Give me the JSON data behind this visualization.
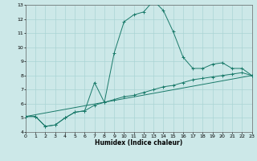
{
  "xlabel": "Humidex (Indice chaleur)",
  "bg_color": "#cce8e8",
  "line_color": "#1a7a6a",
  "grid_color": "#aad4d4",
  "line1_x": [
    0,
    1,
    2,
    3,
    4,
    5,
    6,
    7,
    8,
    9,
    10,
    11,
    12,
    13,
    14,
    15,
    16,
    17,
    18,
    19,
    20,
    21,
    22,
    23
  ],
  "line1_y": [
    5.1,
    5.1,
    4.4,
    4.5,
    5.0,
    5.4,
    5.5,
    7.5,
    6.1,
    9.6,
    11.8,
    12.3,
    12.5,
    13.3,
    12.6,
    11.1,
    9.3,
    8.5,
    8.5,
    8.8,
    8.9,
    8.5,
    8.5,
    8.0
  ],
  "line2_x": [
    0,
    1,
    2,
    3,
    4,
    5,
    6,
    7,
    8,
    9,
    10,
    11,
    12,
    13,
    14,
    15,
    16,
    17,
    18,
    19,
    20,
    21,
    22,
    23
  ],
  "line2_y": [
    5.1,
    5.1,
    4.4,
    4.5,
    5.0,
    5.4,
    5.5,
    5.9,
    6.1,
    6.3,
    6.5,
    6.6,
    6.8,
    7.0,
    7.2,
    7.3,
    7.5,
    7.7,
    7.8,
    7.9,
    8.0,
    8.1,
    8.2,
    8.0
  ],
  "line3_x": [
    0,
    23
  ],
  "line3_y": [
    5.1,
    8.0
  ],
  "xlim": [
    0,
    23
  ],
  "ylim": [
    4,
    13
  ],
  "xticks": [
    0,
    1,
    2,
    3,
    4,
    5,
    6,
    7,
    8,
    9,
    10,
    11,
    12,
    13,
    14,
    15,
    16,
    17,
    18,
    19,
    20,
    21,
    22,
    23
  ],
  "yticks": [
    4,
    5,
    6,
    7,
    8,
    9,
    10,
    11,
    12,
    13
  ]
}
